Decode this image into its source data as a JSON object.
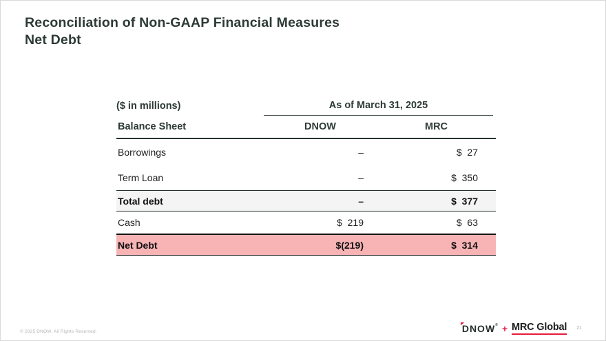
{
  "page": {
    "title_line1": "Reconciliation of Non-GAAP Financial Measures",
    "title_line2": "Net Debt",
    "copyright": "© 2025 DNOW. All Rights Reserved.",
    "page_number": "21"
  },
  "colors": {
    "title_dark": "#2d3a35",
    "accent_red": "#e8193c",
    "subtotal_row_gray": "#f4f4f4",
    "total_row_pink": "#f8b3b5"
  },
  "logos": {
    "dnow_text": "DNOW",
    "dnow_reg_mark": "®",
    "plus": "+",
    "mrc_text": "MRC Global"
  },
  "table": {
    "units_label": "($ in millions)",
    "group_header": "As of March 31, 2025",
    "columns": [
      "Balance Sheet",
      "DNOW",
      "MRC"
    ],
    "rows": [
      {
        "label": "Borrowings",
        "dnow": "–",
        "mrc": "$  27"
      },
      {
        "label": "Term Loan",
        "dnow": "–",
        "mrc": "$  350"
      },
      {
        "label": "Total debt",
        "dnow": "–",
        "mrc": "$  377"
      },
      {
        "label": "Cash",
        "dnow": "$  219",
        "mrc": "$  63"
      },
      {
        "label": "Net Debt",
        "dnow": "$(219)",
        "mrc": "$  314"
      }
    ]
  }
}
